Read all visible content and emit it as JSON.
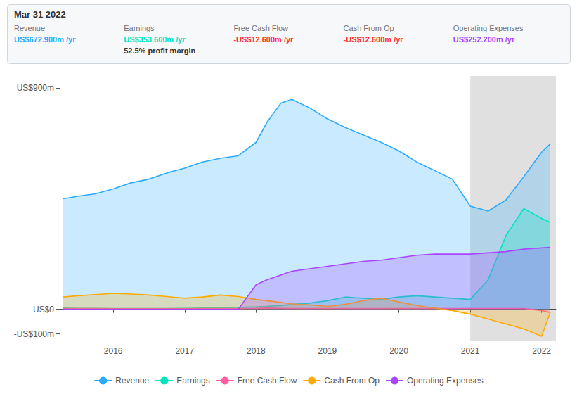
{
  "chart_data": {
    "type": "area",
    "x": [
      2015.3,
      2015.5,
      2015.75,
      2016.0,
      2016.25,
      2016.5,
      2016.75,
      2017.0,
      2017.25,
      2017.5,
      2017.75,
      2018.0,
      2018.15,
      2018.35,
      2018.5,
      2018.75,
      2019.0,
      2019.25,
      2019.5,
      2019.75,
      2020.0,
      2020.25,
      2020.5,
      2020.75,
      2021.0,
      2021.25,
      2021.5,
      2021.75,
      2022.0,
      2022.12
    ],
    "series": [
      {
        "name": "Revenue",
        "color": "#29aaff",
        "values": [
          450,
          460,
          470,
          490,
          515,
          530,
          555,
          575,
          600,
          615,
          625,
          680,
          760,
          840,
          855,
          820,
          775,
          740,
          710,
          680,
          645,
          600,
          565,
          530,
          420,
          400,
          445,
          540,
          640,
          673
        ]
      },
      {
        "name": "Earnings",
        "color": "#00e5c0",
        "values": [
          5,
          4,
          4,
          3,
          3,
          3,
          3,
          4,
          5,
          6,
          8,
          10,
          12,
          15,
          20,
          25,
          35,
          50,
          45,
          40,
          50,
          55,
          50,
          45,
          40,
          120,
          300,
          410,
          370,
          354
        ]
      },
      {
        "name": "Free Cash Flow",
        "color": "#ff5fa0",
        "values": [
          3,
          3,
          3,
          2,
          2,
          2,
          2,
          2,
          3,
          3,
          3,
          4,
          5,
          4,
          3,
          3,
          3,
          3,
          3,
          3,
          3,
          3,
          3,
          3,
          3,
          3,
          3,
          3,
          -5,
          -13
        ]
      },
      {
        "name": "Cash From Op",
        "color": "#ffaa00",
        "values": [
          50,
          55,
          60,
          65,
          62,
          58,
          52,
          45,
          50,
          58,
          52,
          40,
          35,
          28,
          22,
          18,
          12,
          20,
          35,
          45,
          30,
          15,
          5,
          -5,
          -20,
          -40,
          -60,
          -80,
          -110,
          -13
        ]
      },
      {
        "name": "Operating Expenses",
        "color": "#aa44ff",
        "values": [
          0,
          0,
          0,
          0,
          0,
          0,
          0,
          0,
          0,
          0,
          0,
          100,
          120,
          140,
          155,
          165,
          175,
          185,
          195,
          200,
          210,
          220,
          225,
          225,
          225,
          230,
          235,
          245,
          250,
          252
        ]
      }
    ],
    "xlim": [
      2015.25,
      2022.2
    ],
    "xticks": [
      2016,
      2017,
      2018,
      2019,
      2020,
      2021,
      2022
    ],
    "ylim": [
      -130,
      950
    ],
    "yticks": [
      {
        "value": -100,
        "label": "-US$100m"
      },
      {
        "value": 0,
        "label": "US$0"
      },
      {
        "value": 900,
        "label": "US$900m"
      }
    ],
    "grid": false,
    "legend": "bottom",
    "highlight_x": [
      2021.0,
      2022.2
    ],
    "annotations": [
      {
        "text": "Mar 31 2022"
      },
      {
        "label": "Revenue",
        "text": "US$672.900m /yr",
        "color": "#29aaff"
      },
      {
        "label": "Earnings",
        "text": "US$353.600m /yr",
        "color": "#00e5c0"
      },
      {
        "text": "52.5% profit margin"
      },
      {
        "label": "Free Cash Flow",
        "text": "-US$12.600m /yr",
        "color": "#ff3333"
      },
      {
        "label": "Cash From Op",
        "text": "-US$12.600m /yr",
        "color": "#ff3333"
      },
      {
        "label": "Operating Expenses",
        "text": "US$252.200m /yr",
        "color": "#aa44ff"
      }
    ]
  }
}
